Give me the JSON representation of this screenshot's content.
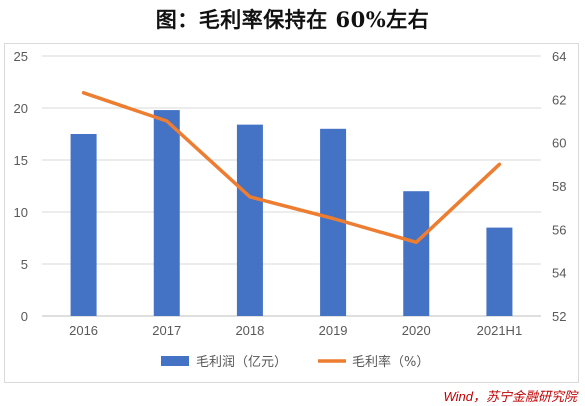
{
  "title": "图：毛利率保持在 60%左右",
  "source": "Wind，苏宁金融研究院",
  "chart_data": {
    "type": "bar+line",
    "categories": [
      "2016",
      "2017",
      "2018",
      "2019",
      "2020",
      "2021H1"
    ],
    "series": [
      {
        "name": "毛利润（亿元）",
        "type": "bar",
        "axis": "left",
        "values": [
          17.5,
          19.8,
          18.4,
          18.0,
          12.0,
          8.5
        ],
        "color": "#4472c4"
      },
      {
        "name": "毛利率（%）",
        "type": "line",
        "axis": "right",
        "values": [
          62.3,
          61.0,
          57.5,
          56.5,
          55.4,
          59.0
        ],
        "color": "#ed7d31"
      }
    ],
    "left_axis": {
      "ylim": [
        0,
        25
      ],
      "ticks": [
        "0",
        "5",
        "10",
        "15",
        "20",
        "25"
      ]
    },
    "right_axis": {
      "ylim": [
        52,
        64
      ],
      "ticks": [
        "52",
        "54",
        "56",
        "58",
        "60",
        "62",
        "64"
      ]
    },
    "grid": true,
    "legend": "bottom"
  }
}
